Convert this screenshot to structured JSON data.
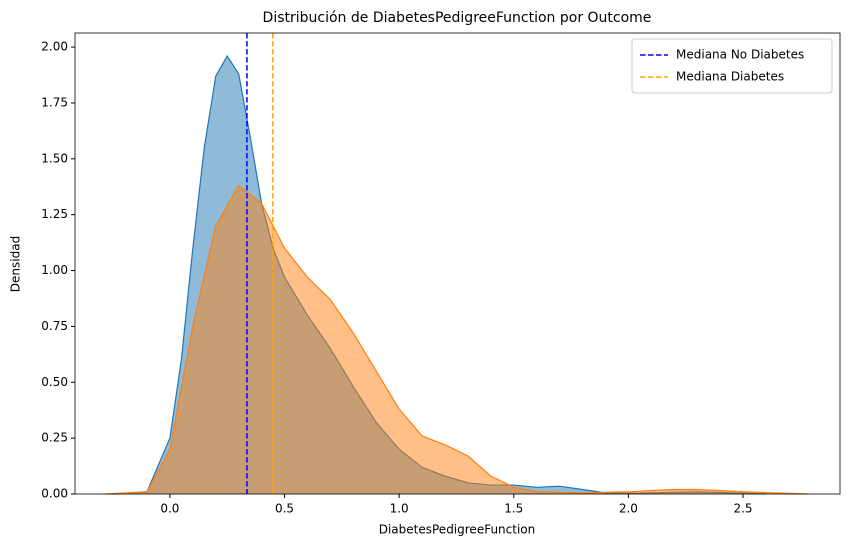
{
  "chart_data": {
    "type": "kde",
    "title": "Distribución de DiabetesPedigreeFunction por Outcome",
    "xlabel": "DiabetesPedigreeFunction",
    "ylabel": "Densidad",
    "xlim": [
      -0.414,
      2.923
    ],
    "ylim": [
      0,
      2.063
    ],
    "xticks": [
      {
        "value": 0,
        "label": "0.0"
      },
      0.5,
      {
        "value": 1,
        "label": "1.0"
      },
      1.5,
      {
        "value": 2,
        "label": "2.0"
      },
      2.5
    ],
    "yticks": [
      {
        "value": 0,
        "label": "0.00"
      },
      0.25,
      {
        "value": 0.5,
        "label": "0.50"
      },
      0.75,
      {
        "value": 1,
        "label": "1.00"
      },
      1.25,
      {
        "value": 1.5,
        "label": "1.50"
      },
      1.75,
      {
        "value": 2,
        "label": "2.00"
      }
    ],
    "legend": "upper right",
    "series": [
      {
        "color": "#1f77b4",
        "x": [
          -0.25,
          -0.1,
          0,
          0.05,
          0.1,
          0.15,
          0.2,
          0.25,
          0.3,
          0.35,
          0.4,
          0.45,
          0.5,
          0.6,
          0.7,
          0.8,
          0.9,
          1.0,
          1.1,
          1.2,
          1.3,
          1.4,
          1.5,
          1.6,
          1.7,
          1.8,
          1.9,
          2.0,
          2.3,
          2.45,
          2.6
        ],
        "values": [
          0,
          0.01,
          0.25,
          0.6,
          1.1,
          1.55,
          1.87,
          1.96,
          1.88,
          1.6,
          1.3,
          1.1,
          0.97,
          0.8,
          0.65,
          0.48,
          0.32,
          0.2,
          0.12,
          0.08,
          0.05,
          0.04,
          0.04,
          0.03,
          0.035,
          0.02,
          0.005,
          0.003,
          0.01,
          0.005,
          0
        ]
      },
      {
        "color": "#ff7f0e",
        "x": [
          -0.28,
          -0.1,
          0,
          0.1,
          0.2,
          0.3,
          0.4,
          0.5,
          0.6,
          0.7,
          0.8,
          0.9,
          1.0,
          1.1,
          1.2,
          1.3,
          1.4,
          1.5,
          1.6,
          1.8,
          2.0,
          2.2,
          2.3,
          2.5,
          2.78
        ],
        "values": [
          0,
          0.01,
          0.2,
          0.75,
          1.2,
          1.38,
          1.3,
          1.1,
          0.97,
          0.87,
          0.72,
          0.55,
          0.38,
          0.26,
          0.22,
          0.17,
          0.08,
          0.03,
          0.01,
          0.005,
          0.01,
          0.02,
          0.02,
          0.01,
          0
        ]
      }
    ],
    "vlines": [
      {
        "name": "Mediana No Diabetes",
        "color": "#0000ff",
        "x": 0.336
      },
      {
        "name": "Mediana Diabetes",
        "color": "#ffa500",
        "x": 0.449
      }
    ]
  }
}
